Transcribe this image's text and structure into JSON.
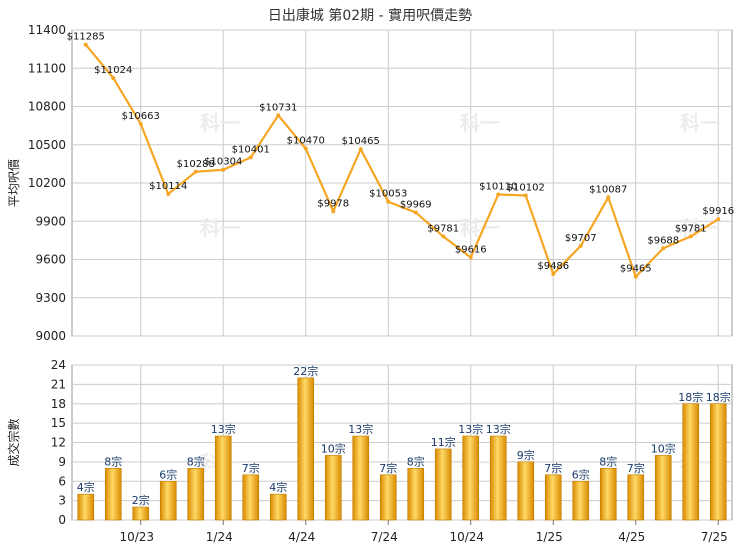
{
  "title": "日出康城 第02期 - 實用呎價走勢",
  "colors": {
    "line": "#f5a623",
    "bar_dark": "#d98a00",
    "bar_light": "#ffd966",
    "grid": "#cccccc"
  },
  "chart_data": [
    {
      "type": "line",
      "ylabel": "平均呎價",
      "ylim": [
        9000,
        11400
      ],
      "yticks": [
        9000,
        9300,
        9600,
        9900,
        10200,
        10500,
        10800,
        11100,
        11400
      ],
      "value_prefix": "$",
      "series": [
        {
          "values": [
            11285,
            11024,
            10663,
            10114,
            10288,
            10304,
            10401,
            10731,
            10470,
            9978,
            10465,
            10053,
            9969,
            9781,
            9616,
            10110,
            10102,
            9486,
            9707,
            10087,
            9465,
            9688,
            9781,
            9916
          ]
        }
      ]
    },
    {
      "type": "bar",
      "ylabel": "成交宗數",
      "ylim": [
        0,
        24
      ],
      "yticks": [
        0,
        3,
        6,
        9,
        12,
        15,
        18,
        21,
        24
      ],
      "value_suffix": "宗",
      "values": [
        4,
        8,
        2,
        6,
        8,
        13,
        7,
        4,
        22,
        10,
        13,
        7,
        8,
        11,
        13,
        13,
        9,
        7,
        6,
        8,
        7,
        10,
        18,
        18
      ],
      "xticks": [
        {
          "label": "10/23",
          "index": 2
        },
        {
          "label": "1/24",
          "index": 5
        },
        {
          "label": "4/24",
          "index": 8
        },
        {
          "label": "7/24",
          "index": 11
        },
        {
          "label": "10/24",
          "index": 14
        },
        {
          "label": "1/25",
          "index": 17
        },
        {
          "label": "4/25",
          "index": 20
        },
        {
          "label": "7/25",
          "index": 23
        }
      ]
    }
  ],
  "watermark": "科一"
}
